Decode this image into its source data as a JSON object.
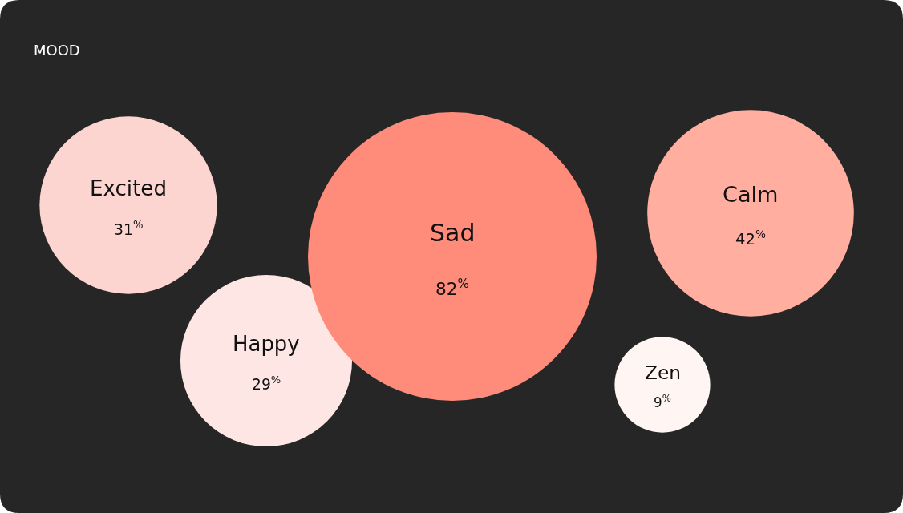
{
  "chart_data": {
    "type": "other",
    "title": "MOOD",
    "categories": [
      "Excited",
      "Happy",
      "Sad",
      "Calm",
      "Zen"
    ],
    "values": [
      31,
      29,
      82,
      42,
      9
    ],
    "value_labels": [
      "31$^{%}$",
      "29$^{%}$",
      "82$^{%}$",
      "42$^{%}$",
      "9$^{%}$"
    ],
    "colors": [
      "#fdd5d0",
      "#fde6e3",
      "#ff8c7a",
      "#ffaea0",
      "#fff5f3"
    ]
  }
}
